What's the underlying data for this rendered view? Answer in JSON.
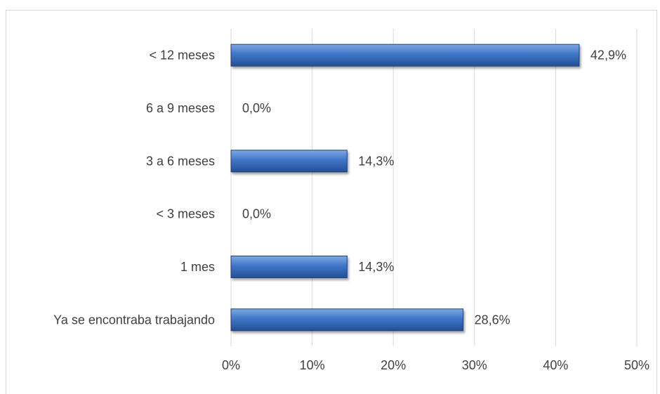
{
  "chart_data": {
    "type": "bar",
    "orientation": "horizontal",
    "categories": [
      "< 12 meses",
      "6 a 9 meses",
      "3 a 6 meses",
      "< 3 meses",
      "1 mes",
      "Ya se encontraba trabajando"
    ],
    "values": [
      42.9,
      0.0,
      14.3,
      0.0,
      14.3,
      28.6
    ],
    "data_labels": [
      "42,9%",
      "0,0%",
      "14,3%",
      "0,0%",
      "14,3%",
      "28,6%"
    ],
    "xlim": [
      0,
      50
    ],
    "x_ticks": [
      0,
      10,
      20,
      30,
      40,
      50
    ],
    "x_tick_labels": [
      "0%",
      "10%",
      "20%",
      "30%",
      "40%",
      "50%"
    ],
    "grid": true,
    "legend": "none",
    "colors": {
      "bar_top": "#7fa8e2",
      "bar_mid": "#3f76c8",
      "bar_bottom": "#244f95",
      "bar_stroke": "#1f3f77",
      "grid": "#d9d9d9",
      "text": "#404040"
    }
  }
}
